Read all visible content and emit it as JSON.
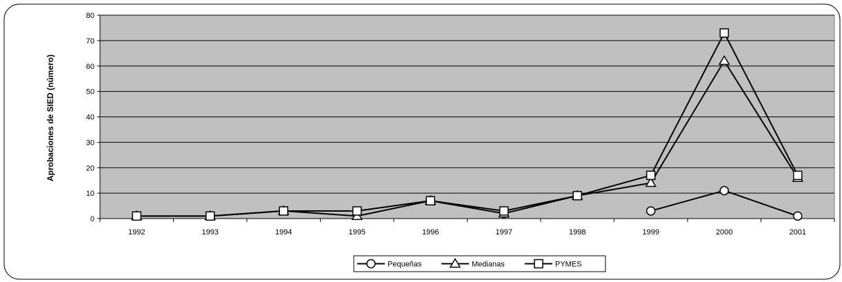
{
  "chart_data": {
    "type": "line",
    "title": "",
    "xlabel": "",
    "ylabel": "Aprobaciones de SIED (número)",
    "ylim": [
      0,
      80
    ],
    "yticks": [
      0,
      10,
      20,
      30,
      40,
      50,
      60,
      70,
      80
    ],
    "categories": [
      "1992",
      "1993",
      "1994",
      "1995",
      "1996",
      "1997",
      "1998",
      "1999",
      "2000",
      "2001"
    ],
    "grid": true,
    "plot_background": "#c0c0c0",
    "legend_position": "bottom",
    "series": [
      {
        "name": "Pequeñas",
        "marker": "circle",
        "values": [
          null,
          null,
          null,
          null,
          null,
          2,
          null,
          3,
          11,
          1
        ]
      },
      {
        "name": "Medianas",
        "marker": "triangle",
        "values": [
          1,
          1,
          3,
          1,
          7,
          2,
          9,
          14,
          62,
          16
        ]
      },
      {
        "name": "PYMES",
        "marker": "square",
        "values": [
          1,
          1,
          3,
          3,
          7,
          3,
          9,
          17,
          73,
          17
        ]
      }
    ]
  }
}
